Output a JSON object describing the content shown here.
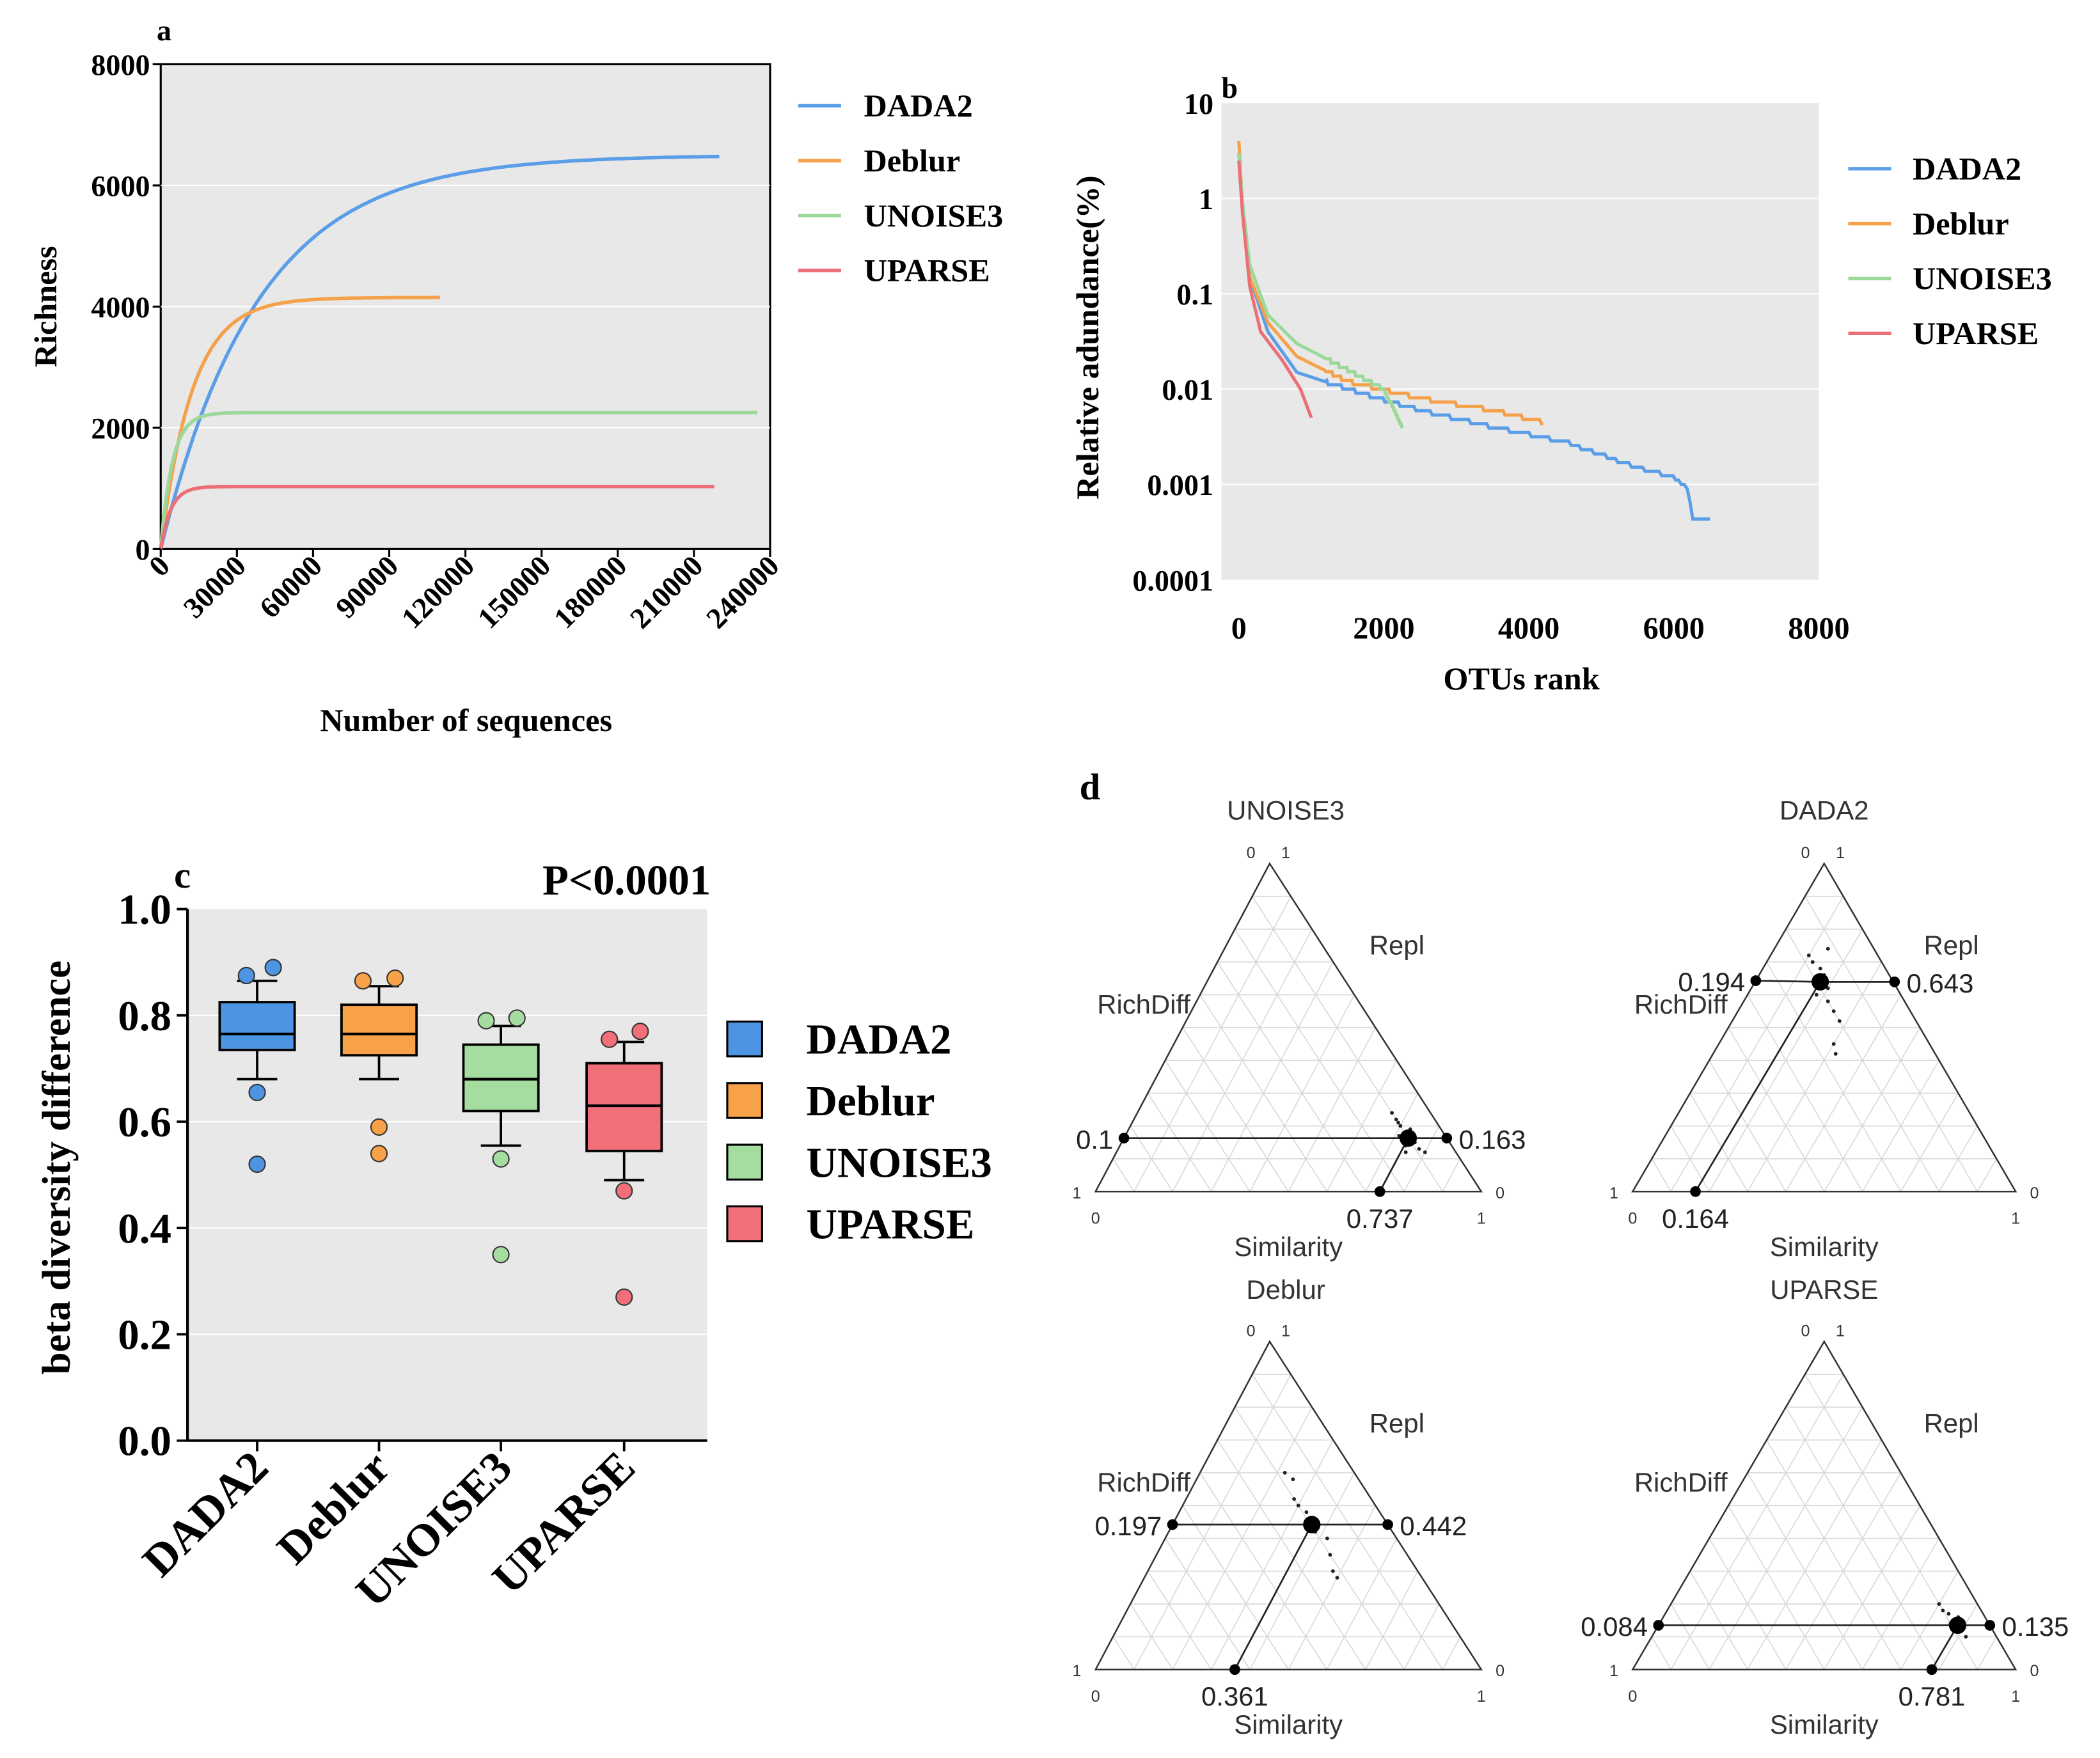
{
  "colors": {
    "DADA2": "#5b9ee8",
    "Deblur": "#f5a14a",
    "UNOISE3": "#9bd89a",
    "UPARSE": "#ec6f76",
    "panel_bg": "#e8e8e8",
    "box_DADA2": "#4d94e3",
    "box_Deblur": "#f7a149",
    "box_UNOISE3": "#a5dca0",
    "box_UPARSE": "#f06f78"
  },
  "legend_series": [
    "DADA2",
    "Deblur",
    "UNOISE3",
    "UPARSE"
  ],
  "chart_data": [
    {
      "panel": "a",
      "type": "line",
      "title": "",
      "xlabel": "Number of sequences",
      "ylabel": "Richness",
      "xlim": [
        0,
        240000
      ],
      "ylim": [
        0,
        8000
      ],
      "x_ticks": [
        "0",
        "30000",
        "60000",
        "90000",
        "120000",
        "150000",
        "180000",
        "210000",
        "240000"
      ],
      "y_ticks": [
        "0",
        "2000",
        "4000",
        "6000",
        "8000"
      ],
      "series": [
        {
          "name": "DADA2",
          "max_x": 220000,
          "plateau": 6500,
          "k": 2.6e-05,
          "points": [
            [
              0,
              0
            ],
            [
              15000,
              2800
            ],
            [
              30000,
              4000
            ],
            [
              60000,
              5300
            ],
            [
              90000,
              5900
            ],
            [
              120000,
              6200
            ],
            [
              150000,
              6350
            ],
            [
              180000,
              6450
            ],
            [
              220000,
              6500
            ]
          ]
        },
        {
          "name": "Deblur",
          "max_x": 110000,
          "plateau": 4150,
          "k": 8e-05,
          "points": [
            [
              0,
              0
            ],
            [
              10000,
              2500
            ],
            [
              20000,
              3400
            ],
            [
              40000,
              3950
            ],
            [
              60000,
              4100
            ],
            [
              110000,
              4150
            ]
          ]
        },
        {
          "name": "UNOISE3",
          "max_x": 235000,
          "plateau": 2250,
          "k": 0.00022,
          "points": [
            [
              0,
              0
            ],
            [
              5000,
              1500
            ],
            [
              15000,
              2100
            ],
            [
              30000,
              2240
            ],
            [
              235000,
              2250
            ]
          ]
        },
        {
          "name": "UPARSE",
          "max_x": 218000,
          "plateau": 1030,
          "k": 0.00025,
          "points": [
            [
              0,
              0
            ],
            [
              5000,
              750
            ],
            [
              15000,
              980
            ],
            [
              30000,
              1025
            ],
            [
              218000,
              1030
            ]
          ]
        }
      ]
    },
    {
      "panel": "b",
      "type": "line",
      "title": "",
      "xlabel": "OTUs rank",
      "ylabel": "Relative adundance(%)",
      "xlim": [
        0,
        8000
      ],
      "ylim_log10": [
        -4,
        1
      ],
      "x_ticks": [
        "0",
        "2000",
        "4000",
        "6000",
        "8000"
      ],
      "y_ticks": [
        "0.0001",
        "0.001",
        "0.01",
        "0.1",
        "1",
        "10"
      ],
      "series": [
        {
          "name": "DADA2",
          "points": [
            [
              0,
              3
            ],
            [
              50,
              0.8
            ],
            [
              150,
              0.15
            ],
            [
              400,
              0.04
            ],
            [
              800,
              0.015
            ],
            [
              1500,
              0.01
            ],
            [
              2500,
              0.006
            ],
            [
              3500,
              0.004
            ],
            [
              4500,
              0.0028
            ],
            [
              5500,
              0.0015
            ],
            [
              6000,
              0.0012
            ],
            [
              6200,
              0.0009
            ],
            [
              6250,
              0.00045
            ],
            [
              6500,
              0.00045
            ]
          ]
        },
        {
          "name": "Deblur",
          "points": [
            [
              0,
              4
            ],
            [
              50,
              0.8
            ],
            [
              150,
              0.15
            ],
            [
              400,
              0.05
            ],
            [
              800,
              0.022
            ],
            [
              1500,
              0.012
            ],
            [
              2500,
              0.008
            ],
            [
              3500,
              0.006
            ],
            [
              4200,
              0.0045
            ]
          ]
        },
        {
          "name": "UNOISE3",
          "points": [
            [
              0,
              3
            ],
            [
              50,
              0.9
            ],
            [
              150,
              0.2
            ],
            [
              400,
              0.06
            ],
            [
              800,
              0.03
            ],
            [
              1500,
              0.016
            ],
            [
              2000,
              0.01
            ],
            [
              2250,
              0.004
            ]
          ]
        },
        {
          "name": "UPARSE",
          "points": [
            [
              0,
              2.5
            ],
            [
              50,
              0.7
            ],
            [
              150,
              0.12
            ],
            [
              300,
              0.04
            ],
            [
              600,
              0.02
            ],
            [
              850,
              0.01
            ],
            [
              1000,
              0.005
            ]
          ]
        }
      ]
    },
    {
      "panel": "c",
      "type": "box",
      "title": "",
      "annotation": "P<0.0001",
      "xlabel": "",
      "ylabel": "beta diversity difference",
      "ylim": [
        0,
        1
      ],
      "y_ticks": [
        "0.0",
        "0.2",
        "0.4",
        "0.6",
        "0.8",
        "1.0"
      ],
      "categories": [
        "DADA2",
        "Deblur",
        "UNOISE3",
        "UPARSE"
      ],
      "boxes": [
        {
          "name": "DADA2",
          "q1": 0.735,
          "median": 0.765,
          "q3": 0.825,
          "whisker_low": 0.68,
          "whisker_high": 0.865,
          "outliers": [
            0.875,
            0.89,
            0.655,
            0.52
          ]
        },
        {
          "name": "Deblur",
          "q1": 0.725,
          "median": 0.765,
          "q3": 0.82,
          "whisker_low": 0.68,
          "whisker_high": 0.855,
          "outliers": [
            0.865,
            0.87,
            0.59,
            0.54
          ]
        },
        {
          "name": "UNOISE3",
          "q1": 0.62,
          "median": 0.68,
          "q3": 0.745,
          "whisker_low": 0.555,
          "whisker_high": 0.78,
          "outliers": [
            0.79,
            0.795,
            0.53,
            0.35
          ]
        },
        {
          "name": "UPARSE",
          "q1": 0.545,
          "median": 0.63,
          "q3": 0.71,
          "whisker_low": 0.49,
          "whisker_high": 0.75,
          "outliers": [
            0.755,
            0.77,
            0.47,
            0.27
          ]
        }
      ]
    },
    {
      "panel": "d",
      "type": "ternary",
      "axes": {
        "left": "RichDiff",
        "right": "Repl",
        "bottom": "Similarity"
      },
      "corner_labels": {
        "top_left": "0",
        "top_right": "1",
        "left": "1",
        "left_bottom": "0",
        "right": "0",
        "right_bottom": "1"
      },
      "plots": [
        {
          "name": "UNOISE3",
          "similarity": 0.737,
          "repl": 0.163,
          "richdiff": 0.1,
          "labels": {
            "richdiff": "0.1",
            "repl": "0.163",
            "similarity": "0.737"
          }
        },
        {
          "name": "DADA2",
          "similarity": 0.164,
          "repl": 0.643,
          "richdiff": 0.194,
          "labels": {
            "richdiff": "0.194",
            "repl": "0.643",
            "similarity": "0.164"
          }
        },
        {
          "name": "Deblur",
          "similarity": 0.361,
          "repl": 0.442,
          "richdiff": 0.197,
          "labels": {
            "richdiff": "0.197",
            "repl": "0.442",
            "similarity": "0.361"
          }
        },
        {
          "name": "UPARSE",
          "similarity": 0.781,
          "repl": 0.135,
          "richdiff": 0.084,
          "labels": {
            "richdiff": "0.084",
            "repl": "0.135",
            "similarity": "0.781"
          }
        }
      ]
    }
  ],
  "panels": {
    "a": {
      "letter": "a"
    },
    "b": {
      "letter": "b"
    },
    "c": {
      "letter": "c"
    },
    "d": {
      "letter": "d"
    }
  }
}
